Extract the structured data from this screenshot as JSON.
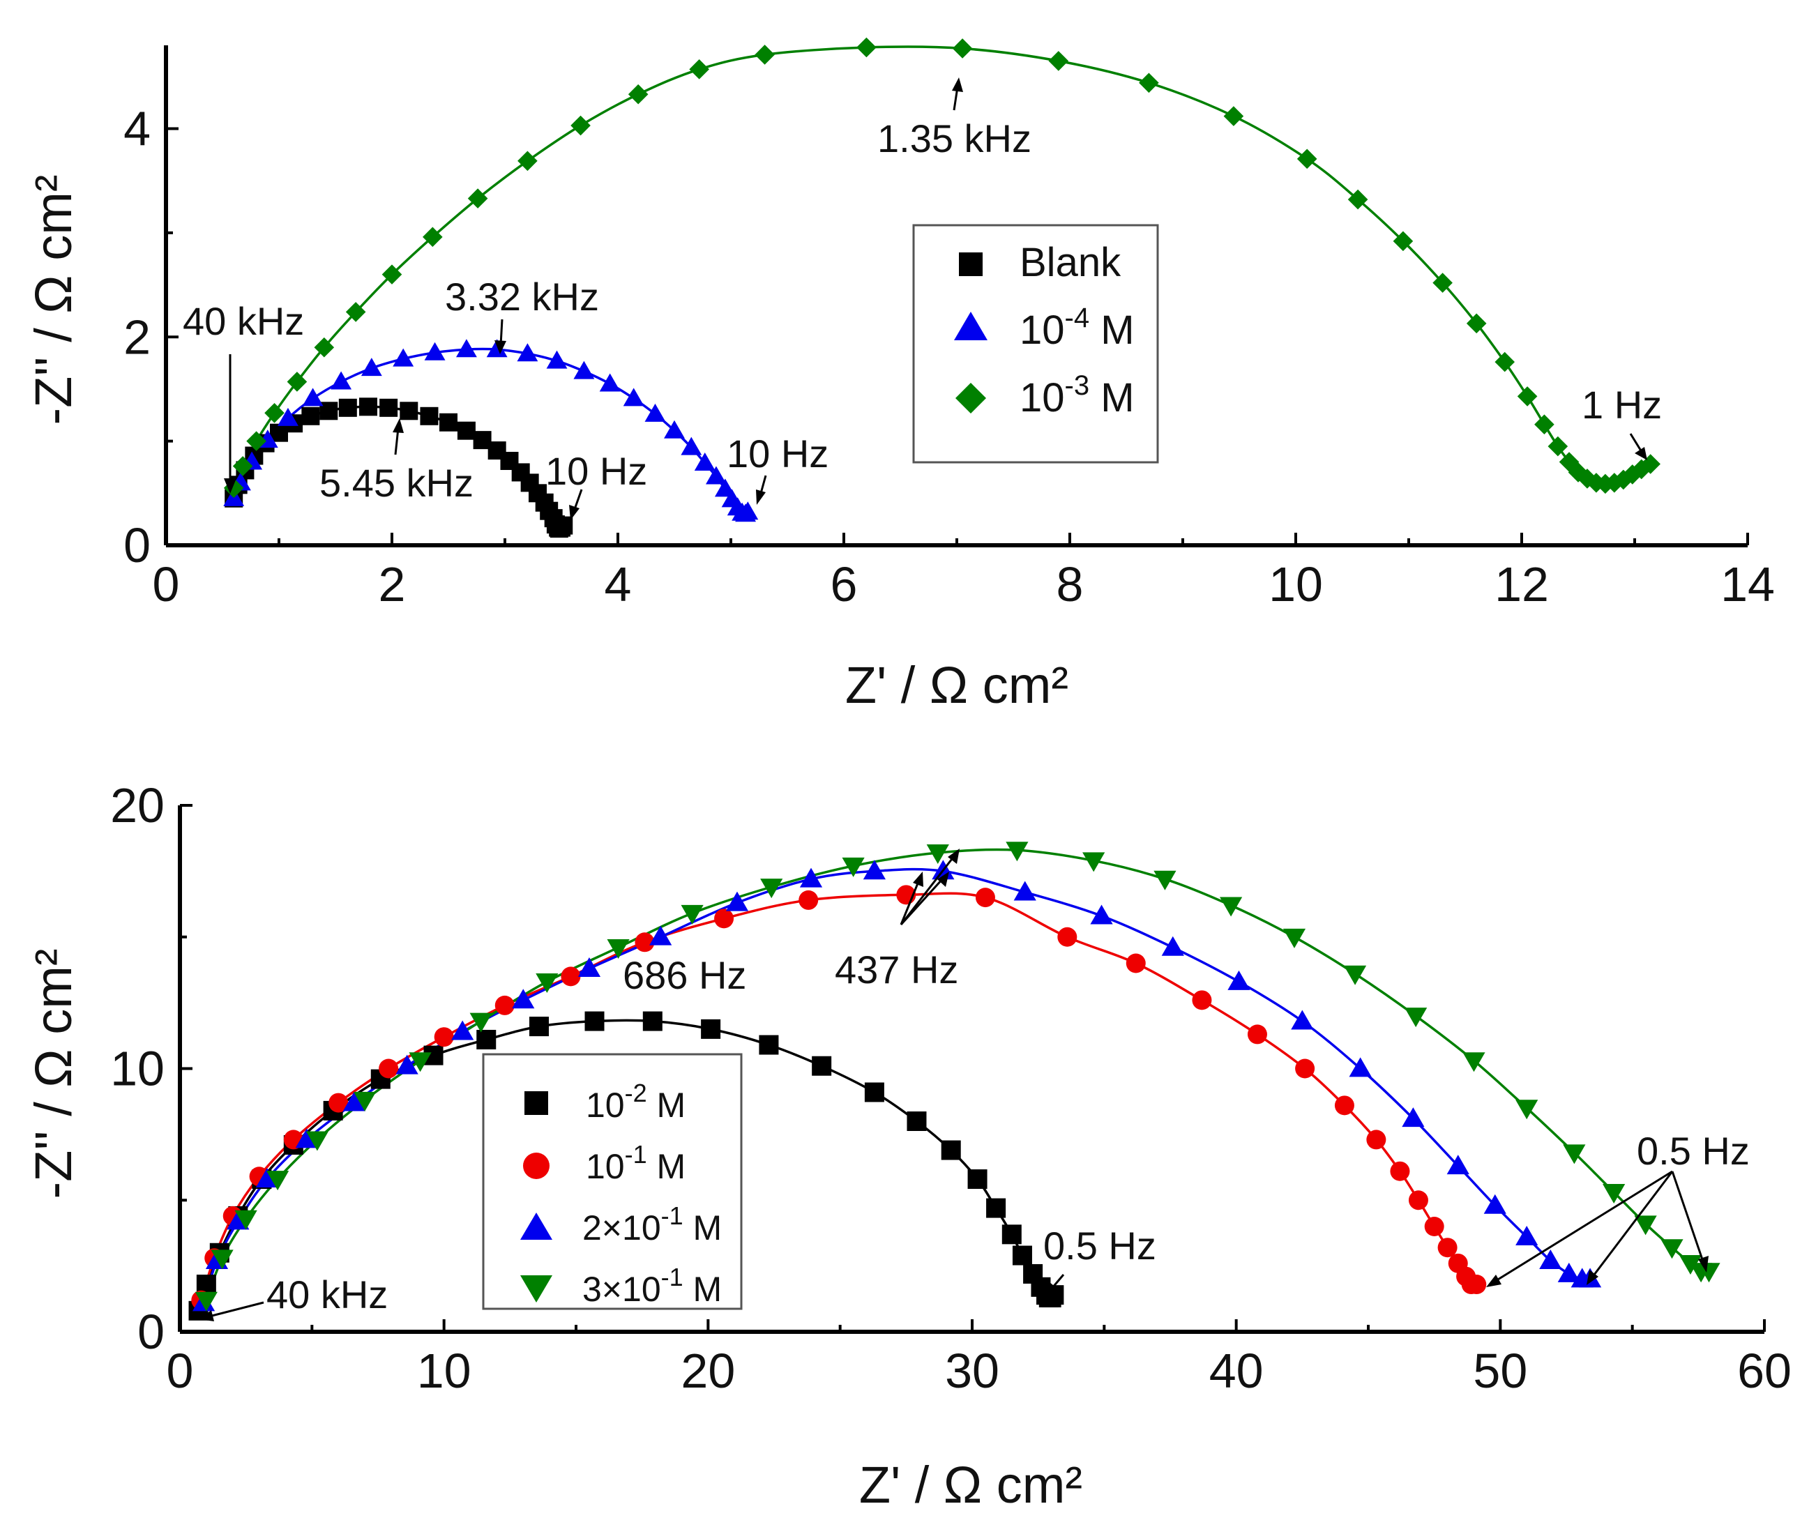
{
  "chart_data": [
    {
      "type": "scatter",
      "panel": "top",
      "xlabel": "Z' / Ω cm²",
      "ylabel": "-Z'' / Ω cm²",
      "xlim": [
        0,
        14
      ],
      "ylim": [
        0,
        4.8
      ],
      "xticks": [
        0,
        2,
        4,
        6,
        8,
        10,
        12,
        14
      ],
      "yticks": [
        0,
        2,
        4
      ],
      "xtick_labels": [
        "0",
        "2",
        "4",
        "6",
        "8",
        "10",
        "12",
        "14"
      ],
      "ytick_labels": [
        "0",
        "2",
        "4"
      ],
      "legend_position": "center-right",
      "series": [
        {
          "name": "Blank",
          "name_main": "Blank",
          "name_exp": "",
          "name_unit": "",
          "marker": "square",
          "color": "#000000",
          "x": [
            0.6,
            0.64,
            0.7,
            0.78,
            0.88,
            1.0,
            1.13,
            1.28,
            1.44,
            1.61,
            1.79,
            1.97,
            2.15,
            2.33,
            2.5,
            2.66,
            2.8,
            2.93,
            3.04,
            3.14,
            3.22,
            3.29,
            3.35,
            3.39,
            3.43,
            3.45,
            3.47,
            3.48,
            3.5,
            3.52
          ],
          "y": [
            0.45,
            0.58,
            0.72,
            0.86,
            0.98,
            1.08,
            1.17,
            1.24,
            1.29,
            1.32,
            1.33,
            1.32,
            1.29,
            1.24,
            1.18,
            1.1,
            1.01,
            0.91,
            0.81,
            0.7,
            0.6,
            0.5,
            0.41,
            0.33,
            0.26,
            0.2,
            0.17,
            0.16,
            0.17,
            0.19
          ]
        },
        {
          "name": "10-4 M",
          "name_main": "10",
          "name_exp": "-4",
          "name_unit": " M",
          "marker": "triangle-up",
          "color": "#0000ee",
          "x": [
            0.6,
            0.66,
            0.76,
            0.9,
            1.08,
            1.3,
            1.55,
            1.82,
            2.1,
            2.38,
            2.66,
            2.93,
            3.2,
            3.46,
            3.7,
            3.93,
            4.14,
            4.33,
            4.5,
            4.65,
            4.77,
            4.87,
            4.95,
            5.01,
            5.06,
            5.1,
            5.13,
            5.15
          ],
          "y": [
            0.45,
            0.6,
            0.8,
            1.01,
            1.22,
            1.41,
            1.57,
            1.7,
            1.79,
            1.85,
            1.88,
            1.88,
            1.84,
            1.77,
            1.67,
            1.55,
            1.41,
            1.26,
            1.1,
            0.94,
            0.79,
            0.66,
            0.54,
            0.44,
            0.36,
            0.31,
            0.3,
            0.32
          ]
        },
        {
          "name": "10-3 M",
          "name_main": "10",
          "name_exp": "-3",
          "name_unit": " M",
          "marker": "diamond",
          "color": "#008000",
          "x": [
            0.6,
            0.68,
            0.8,
            0.96,
            1.16,
            1.4,
            1.68,
            2.0,
            2.36,
            2.76,
            3.2,
            3.67,
            4.18,
            4.72,
            5.3,
            6.2,
            7.05,
            7.9,
            8.7,
            9.45,
            10.1,
            10.55,
            10.95,
            11.3,
            11.6,
            11.85,
            12.05,
            12.2,
            12.32,
            12.42,
            12.5,
            12.58,
            12.66,
            12.74,
            12.82,
            12.9,
            12.98,
            13.06,
            13.14
          ],
          "y": [
            0.55,
            0.76,
            1.0,
            1.27,
            1.57,
            1.9,
            2.24,
            2.6,
            2.96,
            3.33,
            3.69,
            4.03,
            4.33,
            4.57,
            4.71,
            4.78,
            4.77,
            4.65,
            4.44,
            4.12,
            3.71,
            3.32,
            2.92,
            2.52,
            2.13,
            1.76,
            1.43,
            1.16,
            0.95,
            0.8,
            0.7,
            0.64,
            0.6,
            0.59,
            0.6,
            0.63,
            0.68,
            0.73,
            0.78
          ]
        }
      ],
      "annotations": [
        {
          "text": "40 kHz",
          "x": 0.58,
          "y": 0.5
        },
        {
          "text": "3.32 kHz",
          "x": 2.93,
          "y": 1.88
        },
        {
          "text": "5.45 kHz",
          "x": 2.05,
          "y": 1.3
        },
        {
          "text": "10 Hz",
          "x": 3.5,
          "y": 0.19
        },
        {
          "text": "10 Hz",
          "x": 5.15,
          "y": 0.32
        },
        {
          "text": "1.35 kHz",
          "x": 7.05,
          "y": 4.77
        },
        {
          "text": "1 Hz",
          "x": 13.14,
          "y": 0.78
        }
      ]
    },
    {
      "type": "scatter",
      "panel": "bottom",
      "xlabel": "Z' / Ω cm²",
      "ylabel": "-Z'' / Ω cm²",
      "xlim": [
        0,
        60
      ],
      "ylim": [
        0,
        20
      ],
      "xticks": [
        0,
        10,
        20,
        30,
        40,
        50,
        60
      ],
      "yticks": [
        0,
        10,
        20
      ],
      "xtick_labels": [
        "0",
        "10",
        "20",
        "30",
        "40",
        "50",
        "60"
      ],
      "ytick_labels": [
        "0",
        "10",
        "20"
      ],
      "legend_position": "center-left",
      "series": [
        {
          "name": "10-2 M",
          "name_main": "10",
          "name_exp": "-2",
          "name_unit": " M",
          "marker": "square",
          "color": "#000000",
          "x": [
            0.7,
            1.0,
            1.5,
            2.2,
            3.1,
            4.3,
            5.8,
            7.6,
            9.6,
            11.6,
            13.6,
            15.7,
            17.9,
            20.1,
            22.3,
            24.3,
            26.3,
            27.9,
            29.2,
            30.2,
            30.9,
            31.5,
            31.9,
            32.3,
            32.6,
            32.8,
            32.9,
            33.0,
            33.1
          ],
          "y": [
            0.8,
            1.8,
            3.0,
            4.4,
            5.8,
            7.1,
            8.4,
            9.6,
            10.5,
            11.1,
            11.6,
            11.8,
            11.8,
            11.5,
            10.9,
            10.1,
            9.1,
            8.0,
            6.9,
            5.8,
            4.7,
            3.7,
            2.9,
            2.2,
            1.7,
            1.4,
            1.3,
            1.3,
            1.4
          ]
        },
        {
          "name": "10-1 M",
          "name_main": "10",
          "name_exp": "-1",
          "name_unit": " M",
          "marker": "circle",
          "color": "#ee0000",
          "x": [
            0.8,
            1.3,
            2.0,
            3.0,
            4.3,
            6.0,
            7.9,
            10.0,
            12.3,
            14.8,
            17.6,
            20.6,
            23.8,
            27.5,
            30.5,
            33.6,
            36.2,
            38.7,
            40.8,
            42.6,
            44.1,
            45.3,
            46.2,
            46.9,
            47.5,
            48.0,
            48.4,
            48.7,
            48.9,
            49.1
          ],
          "y": [
            1.2,
            2.8,
            4.4,
            5.9,
            7.3,
            8.7,
            10.0,
            11.2,
            12.4,
            13.5,
            14.8,
            15.7,
            16.4,
            16.6,
            16.5,
            15.0,
            14.0,
            12.6,
            11.3,
            10.0,
            8.6,
            7.3,
            6.1,
            5.0,
            4.0,
            3.2,
            2.6,
            2.1,
            1.8,
            1.8
          ]
        },
        {
          "name": "2×10-1 M",
          "name_main": "2×10",
          "name_exp": "-1",
          "name_unit": " M",
          "marker": "triangle-up",
          "color": "#0000ee",
          "x": [
            0.9,
            1.4,
            2.2,
            3.3,
            4.8,
            6.6,
            8.6,
            10.7,
            13.0,
            15.5,
            18.2,
            21.1,
            23.9,
            26.3,
            28.9,
            32.0,
            34.9,
            37.6,
            40.1,
            42.5,
            44.7,
            46.7,
            48.4,
            49.8,
            51.0,
            51.9,
            52.6,
            53.1,
            53.4
          ],
          "y": [
            1.1,
            2.7,
            4.2,
            5.8,
            7.3,
            8.7,
            10.1,
            11.4,
            12.6,
            13.8,
            15.0,
            16.3,
            17.2,
            17.5,
            17.5,
            16.7,
            15.8,
            14.6,
            13.3,
            11.8,
            10.0,
            8.1,
            6.3,
            4.8,
            3.6,
            2.7,
            2.2,
            2.0,
            2.0
          ]
        },
        {
          "name": "3×10-1 M",
          "name_main": "3×10",
          "name_exp": "-1",
          "name_unit": " M",
          "marker": "triangle-down",
          "color": "#008000",
          "x": [
            1.0,
            1.6,
            2.5,
            3.7,
            5.2,
            7.0,
            9.1,
            11.4,
            13.9,
            16.6,
            19.4,
            22.4,
            25.5,
            28.7,
            31.7,
            34.6,
            37.3,
            39.8,
            42.2,
            44.5,
            46.8,
            49.0,
            51.0,
            52.8,
            54.3,
            55.5,
            56.5,
            57.2,
            57.6,
            57.9
          ],
          "y": [
            1.2,
            2.8,
            4.3,
            5.8,
            7.3,
            8.8,
            10.3,
            11.8,
            13.3,
            14.6,
            15.9,
            16.9,
            17.7,
            18.2,
            18.3,
            17.9,
            17.2,
            16.2,
            15.0,
            13.6,
            12.0,
            10.3,
            8.5,
            6.8,
            5.3,
            4.1,
            3.2,
            2.6,
            2.3,
            2.3
          ]
        }
      ],
      "annotations": [
        {
          "text": "40 kHz",
          "x": 0.8,
          "y": 0.7
        },
        {
          "text": "686 Hz",
          "x": 17.9,
          "y": 11.8
        },
        {
          "text": "437 Hz",
          "x": 29.5,
          "y": 18.3
        },
        {
          "text": "0.5 Hz",
          "x": 33.1,
          "y": 1.4
        },
        {
          "text": "0.5 Hz",
          "x": 57.9,
          "y": 2.3
        }
      ]
    }
  ]
}
